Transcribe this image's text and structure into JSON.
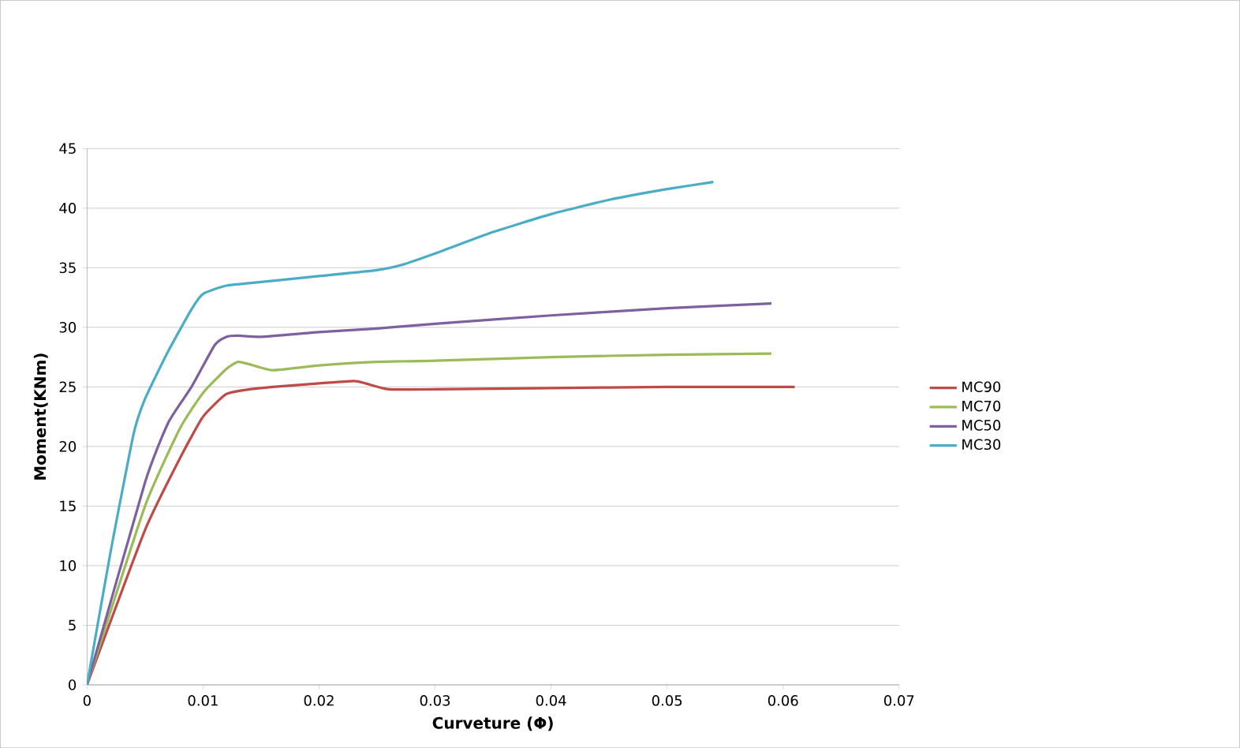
{
  "chart_data": {
    "type": "line",
    "xlabel": "Curveture (Φ)",
    "ylabel": "Moment(KNm)",
    "xlim": [
      0,
      0.07
    ],
    "ylim": [
      0,
      45
    ],
    "xticks": [
      0,
      0.01,
      0.02,
      0.03,
      0.04,
      0.05,
      0.06,
      0.07
    ],
    "yticks": [
      0,
      5,
      10,
      15,
      20,
      25,
      30,
      35,
      40,
      45
    ],
    "grid": "y",
    "legend": "right",
    "marker": "none",
    "line_style": "solid",
    "series": [
      {
        "name": "MC90",
        "color": "#be4b48",
        "x": [
          0,
          0.005,
          0.008,
          0.01,
          0.012,
          0.014,
          0.016,
          0.02,
          0.023,
          0.024,
          0.026,
          0.03,
          0.04,
          0.05,
          0.061
        ],
        "values": [
          0,
          13,
          19,
          22.5,
          24.4,
          24.8,
          25,
          25.3,
          25.5,
          25.3,
          24.8,
          24.8,
          24.9,
          25,
          25
        ]
      },
      {
        "name": "MC70",
        "color": "#9bbb59",
        "x": [
          0,
          0.005,
          0.008,
          0.01,
          0.012,
          0.013,
          0.014,
          0.016,
          0.02,
          0.025,
          0.03,
          0.04,
          0.05,
          0.059
        ],
        "values": [
          0,
          15,
          21.5,
          24.5,
          26.5,
          27.1,
          26.9,
          26.4,
          26.8,
          27.1,
          27.2,
          27.5,
          27.7,
          27.8
        ]
      },
      {
        "name": "MC50",
        "color": "#7d60a0",
        "x": [
          0,
          0.005,
          0.007,
          0.009,
          0.011,
          0.012,
          0.013,
          0.015,
          0.02,
          0.025,
          0.03,
          0.04,
          0.05,
          0.059
        ],
        "values": [
          0,
          17,
          22,
          25,
          28.5,
          29.2,
          29.3,
          29.2,
          29.6,
          29.9,
          30.3,
          31,
          31.6,
          32
        ]
      },
      {
        "name": "MC30",
        "color": "#4bacc6",
        "x": [
          0,
          0.002,
          0.004,
          0.005,
          0.007,
          0.009,
          0.01,
          0.012,
          0.015,
          0.02,
          0.025,
          0.027,
          0.03,
          0.035,
          0.04,
          0.045,
          0.05,
          0.054
        ],
        "values": [
          0,
          11,
          21,
          24,
          28,
          31.5,
          32.8,
          33.5,
          33.8,
          34.3,
          34.8,
          35.2,
          36.2,
          38,
          39.5,
          40.7,
          41.6,
          42.2
        ]
      }
    ]
  }
}
